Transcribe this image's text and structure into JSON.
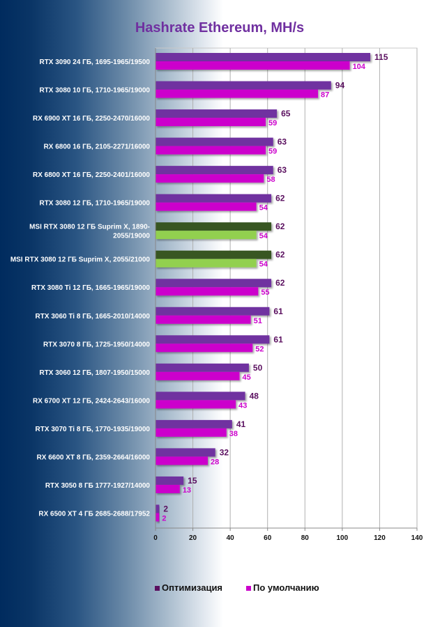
{
  "chart_data": {
    "type": "bar",
    "orientation": "horizontal",
    "title": "Hashrate Ethereum, MH/s",
    "xlabel": "",
    "ylabel": "",
    "xlim": [
      0,
      140
    ],
    "xticks": [
      0,
      20,
      40,
      60,
      80,
      100,
      120,
      140
    ],
    "grid": true,
    "legend_position": "bottom",
    "categories": [
      "RTX 3090 24 ГБ, 1695-1965/19500",
      "RTX 3080 10 ГБ, 1710-1965/19000",
      "RX 6900 XT 16 ГБ, 2250-2470/16000",
      "RX 6800 16 ГБ, 2105-2271/16000",
      "RX 6800 XT 16 ГБ, 2250-2401/16000",
      "RTX 3080 12 ГБ, 1710-1965/19000",
      "MSI RTX 3080 12 ГБ Suprim X, 1890-2055/19000",
      "MSI RTX 3080 12 ГБ Suprim X, 2055/21000",
      "RTX 3080 Ti 12 ГБ, 1665-1965/19000",
      "RTX 3060 Ti 8 ГБ, 1665-2010/14000",
      "RTX 3070 8 ГБ, 1725-1950/14000",
      "RTX 3060 12 ГБ, 1807-1950/15000",
      "RX 6700 XT 12 ГБ, 2424-2643/16000",
      "RTX 3070 Ti 8 ГБ, 1770-1935/19000",
      "RX 6600 XT 8 ГБ, 2359-2664/16000",
      "RTX 3050 8 ГБ 1777-1927/14000",
      "RX 6500 XT 4 ГБ 2685-2688/17952"
    ],
    "category_label_lines": [
      [
        "RTX 3090 24 ГБ, 1695-1965/19500"
      ],
      [
        "RTX 3080 10 ГБ, 1710-1965/19000"
      ],
      [
        "RX 6900 XT 16 ГБ, 2250-2470/16000"
      ],
      [
        "RX 6800 16 ГБ, 2105-2271/16000"
      ],
      [
        "RX 6800 XT 16 ГБ, 2250-2401/16000"
      ],
      [
        "RTX 3080 12 ГБ, 1710-1965/19000"
      ],
      [
        "MSI RTX 3080 12 ГБ Suprim X, 1890-",
        "2055/19000"
      ],
      [
        "MSI RTX 3080 12 ГБ Suprim X, 2055/21000"
      ],
      [
        "RTX 3080 Ti 12 ГБ, 1665-1965/19000"
      ],
      [
        "RTX 3060 Ti 8 ГБ, 1665-2010/14000"
      ],
      [
        "RTX 3070 8 ГБ, 1725-1950/14000"
      ],
      [
        "RTX 3060 12 ГБ, 1807-1950/15000"
      ],
      [
        "RX 6700 XT 12 ГБ, 2424-2643/16000"
      ],
      [
        "RTX 3070 Ti 8 ГБ, 1770-1935/19000"
      ],
      [
        "RX 6600 XT 8 ГБ, 2359-2664/16000"
      ],
      [
        "RTX 3050 8 ГБ 1777-1927/14000"
      ],
      [
        "RX 6500 XT 4 ГБ 2685-2688/17952"
      ]
    ],
    "series": [
      {
        "name": "Оптимизация",
        "color": "#7030a0",
        "label_color": "#5a0f5f",
        "values": [
          115,
          94,
          65,
          63,
          63,
          62,
          62,
          62,
          62,
          61,
          61,
          50,
          48,
          41,
          32,
          15,
          2
        ]
      },
      {
        "name": "По умолчанию",
        "color": "#cc00cc",
        "label_color": "#cc00cc",
        "values": [
          104,
          87,
          59,
          59,
          58,
          54,
          54,
          54,
          55,
          51,
          52,
          45,
          43,
          38,
          28,
          13,
          2
        ]
      }
    ],
    "highlighted_categories": [
      6,
      7
    ],
    "highlight_colors": {
      "series_0": "#375623",
      "series_1": "#92d050"
    }
  }
}
